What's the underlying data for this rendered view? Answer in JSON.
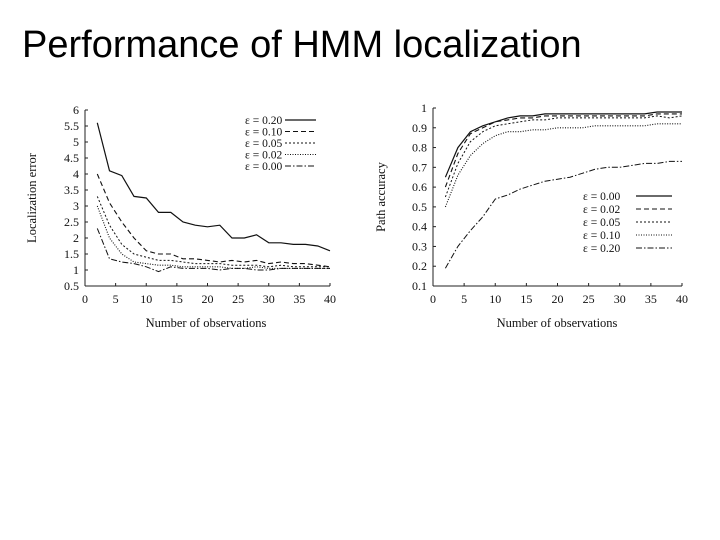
{
  "slide": {
    "title": "Performance of HMM localization"
  },
  "chart_data": [
    {
      "type": "line",
      "title": "",
      "xlabel": "Number of observations",
      "ylabel": "Localization error",
      "xlim": [
        0,
        40
      ],
      "ylim": [
        0.5,
        6
      ],
      "xticks": [
        0,
        5,
        10,
        15,
        20,
        25,
        30,
        35,
        40
      ],
      "yticks": [
        0.5,
        1,
        1.5,
        2,
        2.5,
        3,
        3.5,
        4,
        4.5,
        5,
        5.5,
        6
      ],
      "grid": false,
      "legend_position": "top-right",
      "x": [
        2,
        4,
        6,
        8,
        10,
        12,
        14,
        16,
        18,
        20,
        22,
        24,
        26,
        28,
        30,
        32,
        34,
        36,
        38,
        40
      ],
      "series": [
        {
          "name": "ε = 0.20",
          "dash": "solid",
          "values": [
            5.6,
            4.1,
            3.95,
            3.3,
            3.25,
            2.8,
            2.8,
            2.5,
            2.4,
            2.35,
            2.4,
            2.0,
            2.0,
            2.1,
            1.85,
            1.85,
            1.8,
            1.8,
            1.75,
            1.6
          ]
        },
        {
          "name": "ε = 0.10",
          "dash": "dashed",
          "values": [
            4.0,
            3.1,
            2.5,
            2.0,
            1.6,
            1.5,
            1.5,
            1.35,
            1.35,
            1.3,
            1.25,
            1.3,
            1.25,
            1.3,
            1.2,
            1.25,
            1.2,
            1.2,
            1.15,
            1.1
          ]
        },
        {
          "name": "ε = 0.05",
          "dash": "dotted",
          "values": [
            3.3,
            2.4,
            1.8,
            1.5,
            1.4,
            1.3,
            1.3,
            1.25,
            1.2,
            1.2,
            1.2,
            1.15,
            1.15,
            1.15,
            1.1,
            1.15,
            1.1,
            1.1,
            1.1,
            1.1
          ]
        },
        {
          "name": "ε = 0.02",
          "dash": "dense-dotted",
          "values": [
            3.0,
            2.0,
            1.5,
            1.25,
            1.2,
            1.15,
            1.15,
            1.1,
            1.1,
            1.1,
            1.1,
            1.05,
            1.05,
            1.1,
            1.05,
            1.05,
            1.05,
            1.05,
            1.05,
            1.05
          ]
        },
        {
          "name": "ε = 0.00",
          "dash": "dash-dot",
          "values": [
            2.3,
            1.35,
            1.25,
            1.2,
            1.1,
            0.95,
            1.1,
            1.05,
            1.05,
            1.05,
            1.0,
            1.05,
            1.05,
            1.0,
            1.0,
            1.05,
            1.05,
            1.05,
            1.05,
            1.05
          ]
        }
      ]
    },
    {
      "type": "line",
      "title": "",
      "xlabel": "Number of observations",
      "ylabel": "Path accuracy",
      "xlim": [
        0,
        40
      ],
      "ylim": [
        0.1,
        1
      ],
      "xticks": [
        0,
        5,
        10,
        15,
        20,
        25,
        30,
        35,
        40
      ],
      "yticks": [
        0.1,
        0.2,
        0.3,
        0.4,
        0.5,
        0.6,
        0.7,
        0.8,
        0.9,
        1
      ],
      "grid": false,
      "legend_position": "bottom-right",
      "x": [
        2,
        4,
        6,
        8,
        10,
        12,
        14,
        16,
        18,
        20,
        22,
        24,
        26,
        28,
        30,
        32,
        34,
        36,
        38,
        40
      ],
      "series": [
        {
          "name": "ε = 0.00",
          "dash": "solid",
          "values": [
            0.65,
            0.8,
            0.88,
            0.91,
            0.93,
            0.95,
            0.96,
            0.96,
            0.97,
            0.97,
            0.97,
            0.97,
            0.97,
            0.97,
            0.97,
            0.97,
            0.97,
            0.98,
            0.98,
            0.98
          ]
        },
        {
          "name": "ε = 0.02",
          "dash": "dashed",
          "values": [
            0.6,
            0.77,
            0.87,
            0.9,
            0.93,
            0.94,
            0.95,
            0.95,
            0.96,
            0.96,
            0.96,
            0.96,
            0.96,
            0.96,
            0.96,
            0.96,
            0.96,
            0.97,
            0.97,
            0.97
          ]
        },
        {
          "name": "ε = 0.05",
          "dash": "dotted",
          "values": [
            0.55,
            0.72,
            0.83,
            0.88,
            0.91,
            0.92,
            0.93,
            0.94,
            0.94,
            0.95,
            0.95,
            0.95,
            0.95,
            0.95,
            0.95,
            0.95,
            0.95,
            0.96,
            0.95,
            0.96
          ]
        },
        {
          "name": "ε = 0.10",
          "dash": "dense-dotted",
          "values": [
            0.5,
            0.66,
            0.76,
            0.82,
            0.86,
            0.88,
            0.88,
            0.89,
            0.89,
            0.9,
            0.9,
            0.9,
            0.91,
            0.91,
            0.91,
            0.91,
            0.91,
            0.92,
            0.92,
            0.92
          ]
        },
        {
          "name": "ε = 0.20",
          "dash": "dash-dot",
          "values": [
            0.19,
            0.3,
            0.38,
            0.45,
            0.54,
            0.56,
            0.59,
            0.61,
            0.63,
            0.64,
            0.65,
            0.67,
            0.69,
            0.7,
            0.7,
            0.71,
            0.72,
            0.72,
            0.73,
            0.73
          ]
        }
      ]
    }
  ]
}
